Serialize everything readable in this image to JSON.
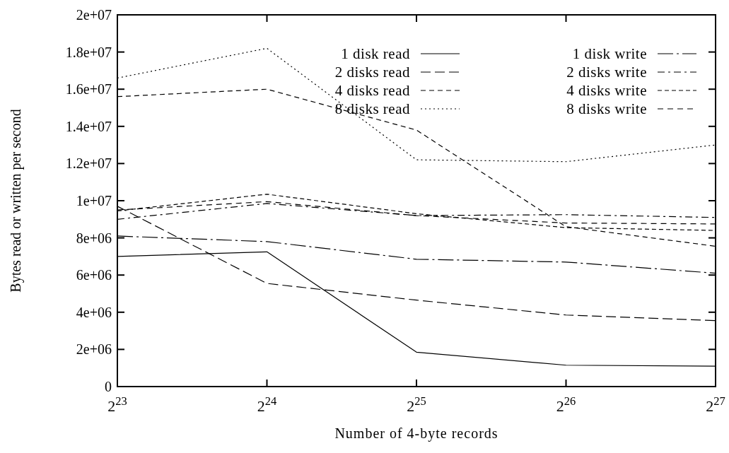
{
  "chart_data": {
    "type": "line",
    "xlabel": "Number of 4-byte records",
    "ylabel": "Bytes read or written per second",
    "x": [
      8388608,
      16777216,
      33554432,
      67108864,
      134217728
    ],
    "log": "x",
    "xlim": [
      8388608,
      134217728
    ],
    "xticks": [
      {
        "value": 8388608,
        "label": "2$^{23}$"
      },
      {
        "value": 16777216,
        "label": "2$^{24}$"
      },
      {
        "value": 33554432,
        "label": "2$^{25}$"
      },
      {
        "value": 67108864,
        "label": "2$^{26}$"
      },
      {
        "value": 134217728,
        "label": "2$^{27}$"
      }
    ],
    "ylim": [
      0,
      20000000
    ],
    "yticks": [
      {
        "value": 0,
        "label": "0"
      },
      {
        "value": 2000000,
        "label": "2e+06"
      },
      {
        "value": 4000000,
        "label": "4e+06"
      },
      {
        "value": 6000000,
        "label": "6e+06"
      },
      {
        "value": 8000000,
        "label": "8e+06"
      },
      {
        "value": 10000000,
        "label": "1e+07"
      },
      {
        "value": 12000000,
        "label": "1.2e+07"
      },
      {
        "value": 14000000,
        "label": "1.4e+07"
      },
      {
        "value": 16000000,
        "label": "1.6e+07"
      },
      {
        "value": 18000000,
        "label": "1.8e+07"
      },
      {
        "value": 20000000,
        "label": "2e+07"
      }
    ],
    "grid": false,
    "legend": "top right",
    "marker": "none",
    "series": [
      {
        "name": "1 disk read",
        "color": "#000000",
        "line_style": "solid",
        "values": [
          7000000,
          7250000,
          1850000,
          1150000,
          1100000
        ]
      },
      {
        "name": "2 disks read",
        "color": "#000000",
        "line_style": "dashed",
        "values": [
          9700000,
          5550000,
          4650000,
          3850000,
          3550000
        ]
      },
      {
        "name": "4 disks read",
        "color": "#000000",
        "line_style": "dashed",
        "values": [
          15600000,
          16000000,
          13800000,
          8600000,
          7550000
        ]
      },
      {
        "name": "8 disks read",
        "color": "#000000",
        "line_style": "dotted",
        "values": [
          16600000,
          18200000,
          12200000,
          12100000,
          13000000
        ]
      },
      {
        "name": "1 disk write",
        "color": "#000000",
        "line_style": "dashed",
        "values": [
          8100000,
          7800000,
          6850000,
          6700000,
          6100000
        ]
      },
      {
        "name": "2 disks write",
        "color": "#000000",
        "line_style": "dashed",
        "values": [
          9000000,
          9850000,
          9200000,
          9250000,
          9100000
        ]
      },
      {
        "name": "4 disks write",
        "color": "#000000",
        "line_style": "dashed",
        "values": [
          9450000,
          10350000,
          9300000,
          8550000,
          8400000
        ]
      },
      {
        "name": "8 disks write",
        "color": "#000000",
        "line_style": "dashed",
        "values": [
          9500000,
          9950000,
          9200000,
          8800000,
          8750000
        ]
      }
    ]
  }
}
